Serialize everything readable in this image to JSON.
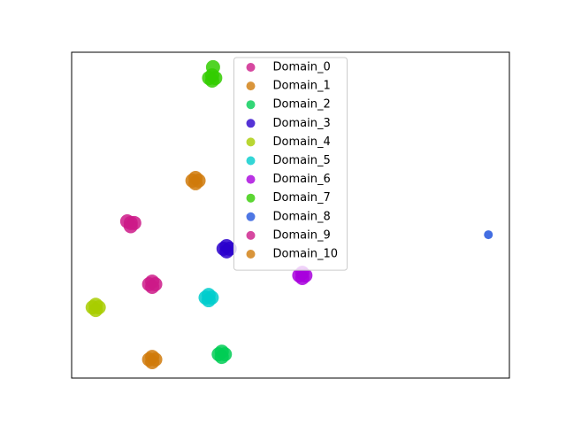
{
  "chart_data": {
    "type": "scatter",
    "xlim": [
      0,
      100
    ],
    "ylim": [
      0,
      100
    ],
    "legend": "upper center",
    "series": [
      {
        "name": "Domain_0",
        "color": "#cc1a88",
        "x": [
          12.7,
          13.5,
          14.3,
          13.5
        ],
        "y": [
          48.1,
          47.6,
          47.6,
          46.6
        ]
      },
      {
        "name": "Domain_1",
        "color": "#d07a0a",
        "x": [
          27.6,
          28.3,
          29.0,
          28.3
        ],
        "y": [
          60.6,
          61.4,
          60.6,
          59.8
        ]
      },
      {
        "name": "Domain_2",
        "color": "#00cc55",
        "x": [
          33.6,
          34.3,
          35.0,
          34.3
        ],
        "y": [
          7.3,
          8.1,
          7.3,
          6.5
        ]
      },
      {
        "name": "Domain_3",
        "color": "#2a00cc",
        "x": [
          34.7,
          35.4,
          36.1,
          35.4
        ],
        "y": [
          39.7,
          40.5,
          39.7,
          38.9
        ]
      },
      {
        "name": "Domain_4",
        "color": "#a8cc00",
        "x": [
          4.8,
          5.5,
          6.2,
          5.5
        ],
        "y": [
          21.7,
          22.5,
          21.7,
          20.9
        ]
      },
      {
        "name": "Domain_5",
        "color": "#00cccc",
        "x": [
          30.6,
          31.3,
          32.0,
          31.3
        ],
        "y": [
          24.7,
          25.5,
          24.7,
          23.9
        ]
      },
      {
        "name": "Domain_6",
        "color": "#a800dd",
        "x": [
          52.0,
          52.7,
          53.4,
          52.7
        ],
        "y": [
          31.5,
          32.3,
          31.5,
          30.7
        ]
      },
      {
        "name": "Domain_7",
        "color": "#33cc00",
        "x": [
          31.4,
          32.1,
          32.8,
          32.1,
          32.3
        ],
        "y": [
          92.1,
          92.9,
          92.1,
          91.3,
          95.4
        ]
      },
      {
        "name": "Domain_8",
        "color": "#2255dd",
        "x": [
          95.2
        ],
        "y": [
          44.0
        ]
      },
      {
        "name": "Domain_9",
        "color": "#cc1a88",
        "x": [
          17.7,
          18.4,
          19.1,
          18.4
        ],
        "y": [
          28.8,
          29.6,
          28.8,
          28.0
        ]
      },
      {
        "name": "Domain_10",
        "color": "#d07a0a",
        "x": [
          17.7,
          18.4,
          19.1,
          18.4
        ],
        "y": [
          5.7,
          6.5,
          5.7,
          4.9
        ]
      }
    ]
  }
}
